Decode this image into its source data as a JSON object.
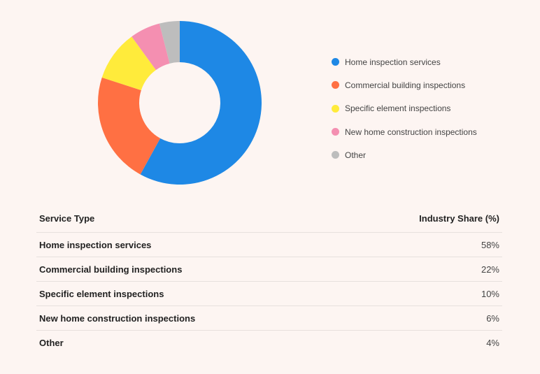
{
  "chart_data": {
    "type": "pie",
    "donut": true,
    "categories": [
      "Home inspection services",
      "Commercial building inspections",
      "Specific element inspections",
      "New home construction inspections",
      "Other"
    ],
    "values": [
      58,
      22,
      10,
      6,
      4
    ],
    "colors": [
      "#1e88e5",
      "#ff7043",
      "#ffeb3b",
      "#f48fb1",
      "#bdbdbd"
    ],
    "legend_position": "right"
  },
  "table": {
    "headers": [
      "Service Type",
      "Industry Share (%)"
    ],
    "rows": [
      [
        "Home inspection services",
        "58%"
      ],
      [
        "Commercial building inspections",
        "22%"
      ],
      [
        "Specific element inspections",
        "10%"
      ],
      [
        "New home construction inspections",
        "6%"
      ],
      [
        "Other",
        "4%"
      ]
    ]
  }
}
